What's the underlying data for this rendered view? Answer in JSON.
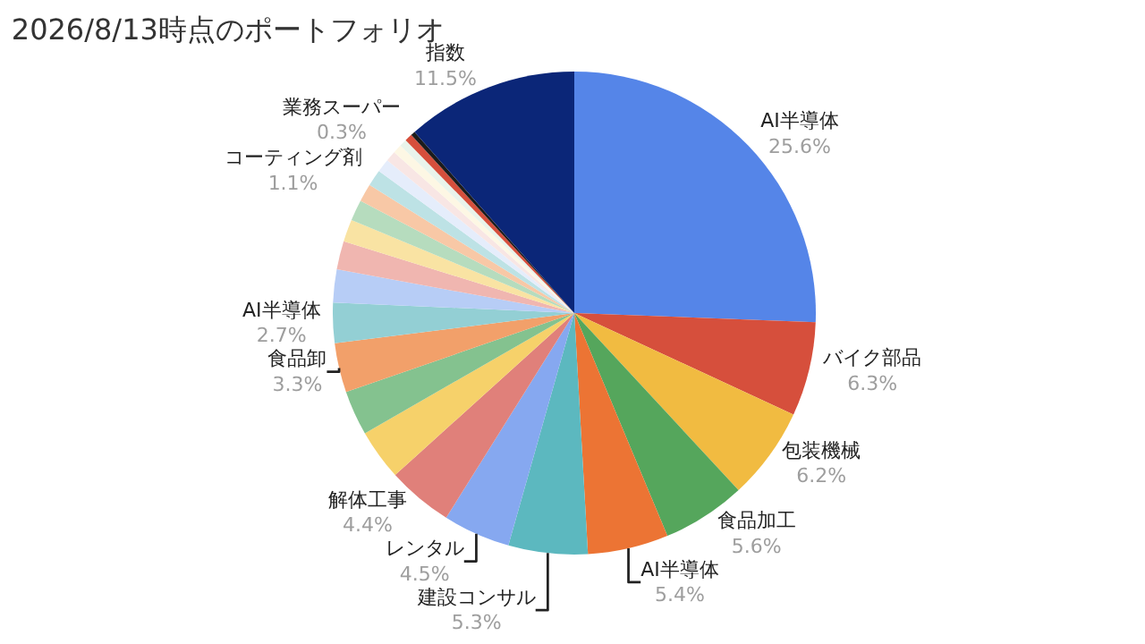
{
  "chart_data": {
    "type": "pie",
    "title": "2026/8/13時点のポートフォリオ",
    "categories": [
      "AI半導体",
      "バイク部品",
      "包装機械",
      "食品加工",
      "AI半導体",
      "建設コンサル",
      "レンタル",
      "解体工事",
      null,
      null,
      "食品卸",
      "AI半導体",
      null,
      null,
      null,
      null,
      null,
      "コーティング剤",
      null,
      null,
      null,
      null,
      null,
      "業務スーパー",
      "指数"
    ],
    "values": [
      25.6,
      6.3,
      6.2,
      5.6,
      5.4,
      5.3,
      4.5,
      4.4,
      3.4,
      3.0,
      3.3,
      2.7,
      2.2,
      1.9,
      1.5,
      1.4,
      1.2,
      1.1,
      0.9,
      0.7,
      0.6,
      0.5,
      0.5,
      0.3,
      11.5
    ],
    "value_labels": [
      "25.6%",
      "6.3%",
      "6.2%",
      "5.6%",
      "5.4%",
      "5.3%",
      "4.5%",
      "4.4%",
      null,
      null,
      "3.3%",
      "2.7%",
      null,
      null,
      null,
      null,
      null,
      "1.1%",
      null,
      null,
      null,
      null,
      null,
      "0.3%",
      "11.5%"
    ],
    "colors": [
      "#5585e8",
      "#d64f3c",
      "#f1bb41",
      "#55a65c",
      "#ec7434",
      "#5cb8bf",
      "#86a8f0",
      "#e0807a",
      "#f6d16a",
      "#84c28f",
      "#f2a06a",
      "#93cfd4",
      "#b7cdf6",
      "#f0b6b0",
      "#f9e3a3",
      "#b6dcbe",
      "#f8c8a6",
      "#bde2e5",
      "#e5edfb",
      "#f8e6e4",
      "#fdf7e4",
      "#e9f4eb",
      "#d64f3c",
      "#1c1c1c",
      "#0b2678"
    ],
    "legend": false
  }
}
